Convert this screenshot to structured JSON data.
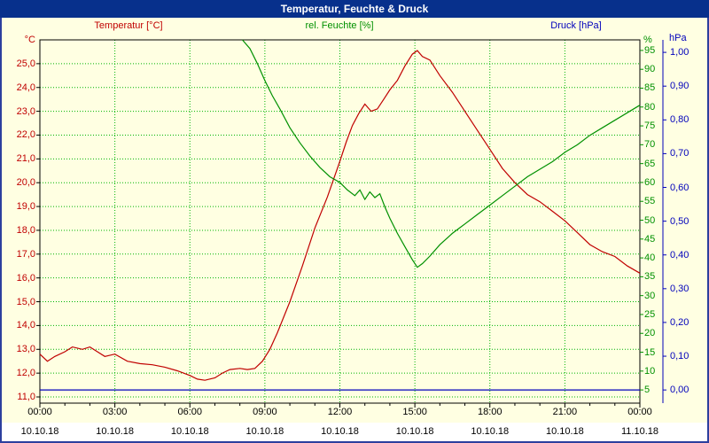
{
  "window": {
    "title": "Temperatur, Feuchte & Druck"
  },
  "legend": {
    "temperature": "Temperatur [°C]",
    "humidity": "rel. Feuchte [%]",
    "pressure": "Druck [hPa]"
  },
  "units": {
    "temperature": "°C",
    "humidity": "%",
    "pressure": "hPa"
  },
  "colors": {
    "temperature": "#c00000",
    "humidity": "#009000",
    "pressure": "#0000bb",
    "grid": "#00b400",
    "titlebar": "#07308c",
    "frame": "#2d3f9e",
    "background": "#ffffe2"
  },
  "chart_data": {
    "type": "line",
    "title": "Temperatur, Feuchte & Druck",
    "x_axis": {
      "unit": "time",
      "tick_hours": [
        0,
        3,
        6,
        9,
        12,
        15,
        18,
        21,
        24
      ],
      "tick_times": [
        "00:00",
        "03:00",
        "06:00",
        "09:00",
        "12:00",
        "15:00",
        "18:00",
        "21:00",
        "00:00"
      ],
      "tick_dates": [
        "10.10.18",
        "10.10.18",
        "10.10.18",
        "10.10.18",
        "10.10.18",
        "10.10.18",
        "10.10.18",
        "10.10.18",
        "11.10.18"
      ]
    },
    "y_axes": {
      "temperature": {
        "unit": "°C",
        "range": [
          10.74,
          26.0
        ],
        "tick_values": [
          25,
          24,
          23,
          22,
          21,
          20,
          19,
          18,
          17,
          16,
          15,
          14,
          13,
          12,
          11
        ],
        "tick_labels": [
          "25,0",
          "24,0",
          "23,0",
          "22,0",
          "21,0",
          "20,0",
          "19,0",
          "18,0",
          "17,0",
          "16,0",
          "15,0",
          "14,0",
          "13,0",
          "12,0",
          "11,0"
        ]
      },
      "humidity": {
        "unit": "%",
        "range": [
          1.5,
          97.8
        ],
        "tick_values": [
          95,
          90,
          85,
          80,
          75,
          70,
          65,
          60,
          55,
          50,
          45,
          40,
          35,
          30,
          25,
          20,
          15,
          10,
          5
        ],
        "tick_labels": [
          "95",
          "90",
          "85",
          "80",
          "75",
          "70",
          "65",
          "60",
          "55",
          "50",
          "45",
          "40",
          "35",
          "30",
          "25",
          "20",
          "15",
          "10",
          "5"
        ]
      },
      "pressure": {
        "unit": "hPa",
        "range": [
          -0.039,
          1.037
        ],
        "tick_values": [
          1.0,
          0.9,
          0.8,
          0.7,
          0.6,
          0.5,
          0.4,
          0.3,
          0.2,
          0.1,
          0.0
        ],
        "tick_labels": [
          "1,00",
          "0,90",
          "0,80",
          "0,70",
          "0,60",
          "0,50",
          "0,40",
          "0,30",
          "0,20",
          "0,10",
          "0,00"
        ]
      }
    },
    "series": [
      {
        "name": "Temperatur [°C]",
        "axis": "temperature",
        "color": "#c00000",
        "x": [
          0,
          0.3,
          0.6,
          1.0,
          1.3,
          1.7,
          2.0,
          2.3,
          2.6,
          3.0,
          3.5,
          4.0,
          4.5,
          5.0,
          5.5,
          6.0,
          6.3,
          6.6,
          7.0,
          7.3,
          7.6,
          8.0,
          8.3,
          8.6,
          8.9,
          9.2,
          9.5,
          10.0,
          10.5,
          11.0,
          11.5,
          12.0,
          12.25,
          12.5,
          12.75,
          13.0,
          13.25,
          13.5,
          13.75,
          14.0,
          14.3,
          14.6,
          14.9,
          15.1,
          15.3,
          15.6,
          16.0,
          16.5,
          17.0,
          17.5,
          18.0,
          18.5,
          19.0,
          19.5,
          20.0,
          20.5,
          21.0,
          21.5,
          22.0,
          22.5,
          23.0,
          23.5,
          24.0
        ],
        "values": [
          12.8,
          12.5,
          12.7,
          12.9,
          13.1,
          13.0,
          13.1,
          12.9,
          12.7,
          12.8,
          12.5,
          12.4,
          12.35,
          12.25,
          12.1,
          11.9,
          11.75,
          11.7,
          11.8,
          12.0,
          12.15,
          12.2,
          12.15,
          12.2,
          12.5,
          13.0,
          13.7,
          15.0,
          16.5,
          18.1,
          19.4,
          20.9,
          21.7,
          22.4,
          22.9,
          23.3,
          23.0,
          23.1,
          23.5,
          23.9,
          24.3,
          24.9,
          25.4,
          25.55,
          25.3,
          25.15,
          24.5,
          23.8,
          23.0,
          22.2,
          21.4,
          20.6,
          20.0,
          19.5,
          19.2,
          18.8,
          18.4,
          17.9,
          17.4,
          17.1,
          16.9,
          16.5,
          16.2
        ]
      },
      {
        "name": "rel. Feuchte [%]",
        "axis": "humidity",
        "color": "#009000",
        "x": [
          8.1,
          8.4,
          8.7,
          9.0,
          9.3,
          9.6,
          10.0,
          10.4,
          10.8,
          11.2,
          11.6,
          12.0,
          12.3,
          12.6,
          12.8,
          13.0,
          13.2,
          13.4,
          13.6,
          13.8,
          14.0,
          14.3,
          14.6,
          14.9,
          15.1,
          15.3,
          15.6,
          16.0,
          16.5,
          17.0,
          17.5,
          18.0,
          18.5,
          19.0,
          19.5,
          20.0,
          20.5,
          21.0,
          21.5,
          22.0,
          22.5,
          23.0,
          23.5,
          24.0
        ],
        "values": [
          97.8,
          95.5,
          91.5,
          87,
          83,
          79.5,
          74.5,
          70.5,
          67,
          64,
          61.5,
          60,
          58,
          56.5,
          58,
          55.5,
          57.5,
          56,
          57,
          53.5,
          50.5,
          46.5,
          43,
          39.5,
          37.5,
          38.5,
          40.5,
          43.5,
          46.5,
          49,
          51.5,
          54,
          56.5,
          59,
          61.5,
          63.5,
          65.5,
          68,
          70,
          72.5,
          74.5,
          76.5,
          78.5,
          80.5
        ]
      },
      {
        "name": "Druck [hPa]",
        "axis": "pressure",
        "color": "#0000bb",
        "x": [
          0,
          24
        ],
        "values": [
          0.0,
          0.0
        ]
      }
    ]
  }
}
